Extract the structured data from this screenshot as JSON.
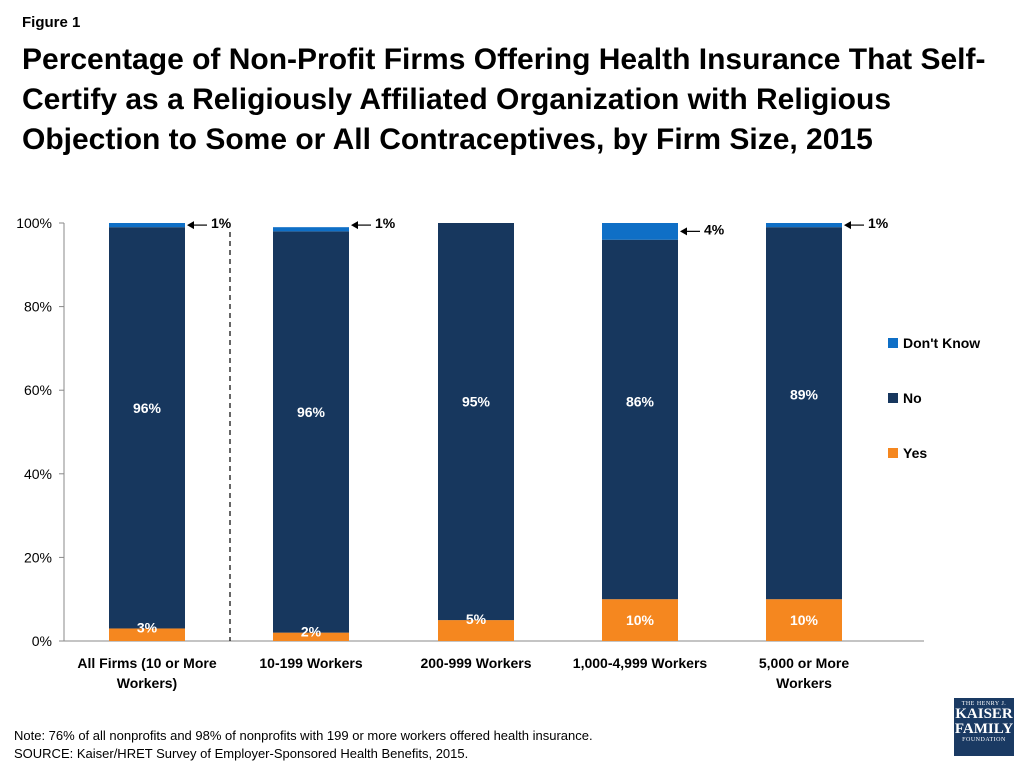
{
  "header": {
    "figure_label": "Figure 1",
    "title_lines": [
      "Percentage of Non-Profit Firms Offering Health Insurance That Self-",
      "Certify as a Religiously Affiliated Organization with Religious",
      "Objection to Some or All Contraceptives, by Firm Size, 2015"
    ]
  },
  "chart_data": {
    "type": "bar",
    "stacked": true,
    "title": "Percentage of Non-Profit Firms Offering Health Insurance That Self-Certify as a Religiously Affiliated Organization with Religious Objection to Some or All Contraceptives, by Firm Size, 2015",
    "categories": [
      [
        "All Firms (10 or More",
        "Workers)"
      ],
      [
        "10-199 Workers"
      ],
      [
        "200-999 Workers"
      ],
      [
        "1,000-4,999 Workers"
      ],
      [
        "5,000 or More",
        "Workers"
      ]
    ],
    "series": [
      {
        "name": "Yes",
        "color": "#f5871f",
        "values": [
          3,
          2,
          5,
          10,
          10
        ],
        "labels": [
          "3%",
          "2%",
          "5%",
          "10%",
          "10%"
        ]
      },
      {
        "name": "No",
        "color": "#17375e",
        "values": [
          96,
          96,
          95,
          86,
          89
        ],
        "labels": [
          "96%",
          "96%",
          "95%",
          "86%",
          "89%"
        ]
      },
      {
        "name": "Don't Know",
        "color": "#0f6fc6",
        "values": [
          1,
          1,
          0,
          4,
          1
        ],
        "labels": [
          "1%",
          "1%",
          "",
          "4%",
          "1%"
        ]
      }
    ],
    "y_ticks": [
      "0%",
      "20%",
      "40%",
      "60%",
      "80%",
      "100%"
    ],
    "ylim": [
      0,
      100
    ],
    "legend": {
      "placement": "right",
      "entries": [
        "Don't Know",
        "No",
        "Yes"
      ]
    },
    "grid": false
  },
  "notes": {
    "note": "Note: 76% of all nonprofits and 98% of nonprofits with 199 or more workers offered health insurance.",
    "source": "SOURCE: Kaiser/HRET Survey of Employer-Sponsored Health Benefits, 2015."
  },
  "logo": {
    "line1": "THE HENRY J.",
    "line2": "KAISER",
    "line3": "FAMILY",
    "line4": "FOUNDATION"
  }
}
